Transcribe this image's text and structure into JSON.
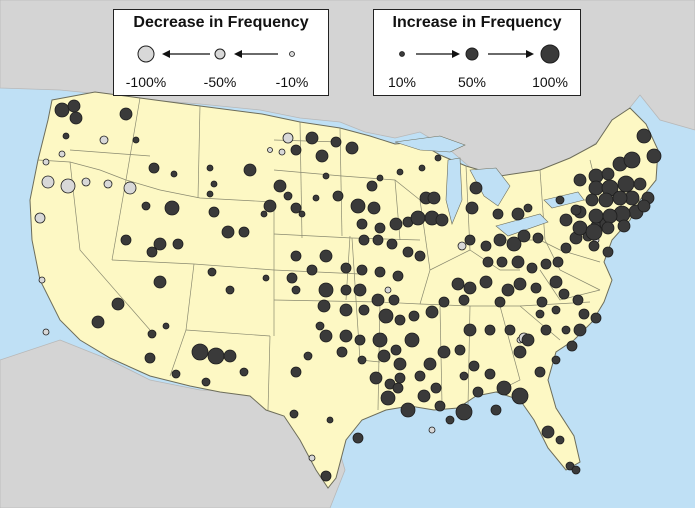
{
  "colors": {
    "ocean": "#bfe0f5",
    "land_other": "#d4d4d4",
    "usa": "#fdf8c4",
    "state_border": "#8a8a70",
    "lakes": "#bfe0f5",
    "increase_dot": "#3a3a3a",
    "decrease_dot": "#d8d8d8",
    "dot_outline": "#1e1e1e"
  },
  "legend": {
    "decrease": {
      "title": "Decrease in Frequency",
      "labels": [
        "-100%",
        "-50%",
        "-10%"
      ],
      "values": [
        -100,
        -50,
        -10
      ]
    },
    "increase": {
      "title": "Increase in Frequency",
      "labels": [
        "10%",
        "50%",
        "100%"
      ],
      "values": [
        10,
        50,
        100
      ]
    }
  },
  "map_data": {
    "increase_points": 230,
    "decrease_points": 22
  }
}
